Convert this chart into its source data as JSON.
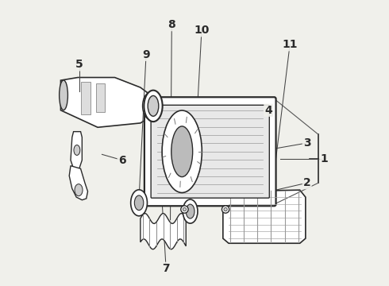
{
  "background_color": "#f0f0eb",
  "line_color": "#2a2a2a",
  "label_fontsize": 10,
  "lw": 1.0,
  "leaders": {
    "1": {
      "lpos": [
        0.955,
        0.445
      ],
      "epos": [
        0.8,
        0.445
      ]
    },
    "2": {
      "lpos": [
        0.895,
        0.36
      ],
      "epos": [
        0.72,
        0.32
      ]
    },
    "3": {
      "lpos": [
        0.895,
        0.5
      ],
      "epos": [
        0.78,
        0.48
      ]
    },
    "4": {
      "lpos": [
        0.76,
        0.615
      ],
      "epos": [
        0.6,
        0.615
      ]
    },
    "5": {
      "lpos": [
        0.095,
        0.775
      ],
      "epos": [
        0.095,
        0.68
      ]
    },
    "6": {
      "lpos": [
        0.245,
        0.44
      ],
      "epos": [
        0.175,
        0.46
      ]
    },
    "7": {
      "lpos": [
        0.4,
        0.06
      ],
      "epos": [
        0.37,
        0.565
      ]
    },
    "8": {
      "lpos": [
        0.42,
        0.915
      ],
      "epos": [
        0.415,
        0.23
      ]
    },
    "9": {
      "lpos": [
        0.33,
        0.81
      ],
      "epos": [
        0.305,
        0.305
      ]
    },
    "10": {
      "lpos": [
        0.525,
        0.895
      ],
      "epos": [
        0.49,
        0.255
      ]
    },
    "11": {
      "lpos": [
        0.835,
        0.845
      ],
      "epos": [
        0.77,
        0.315
      ]
    }
  }
}
